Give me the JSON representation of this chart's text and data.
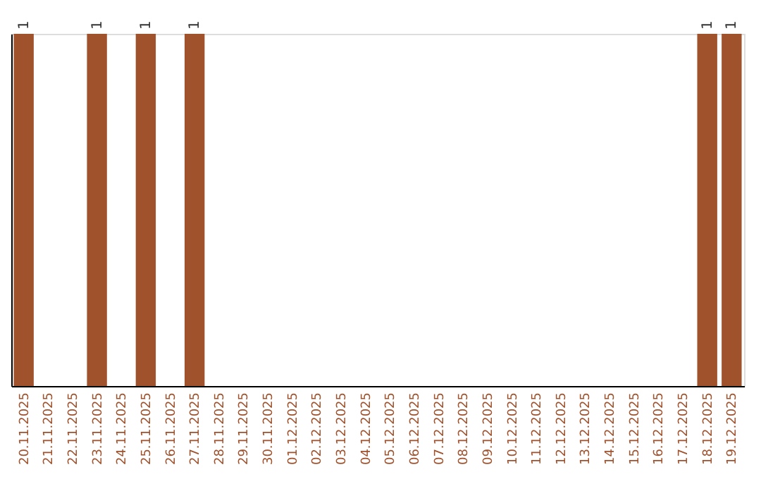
{
  "chart_data": {
    "type": "bar",
    "categories": [
      "20.11.2025",
      "21.11.2025",
      "22.11.2025",
      "23.11.2025",
      "24.11.2025",
      "25.11.2025",
      "26.11.2025",
      "27.11.2025",
      "28.11.2025",
      "29.11.2025",
      "30.11.2025",
      "01.12.2025",
      "02.12.2025",
      "03.12.2025",
      "04.12.2025",
      "05.12.2025",
      "06.12.2025",
      "07.12.2025",
      "08.12.2025",
      "09.12.2025",
      "10.12.2025",
      "11.12.2025",
      "12.12.2025",
      "13.12.2025",
      "14.12.2025",
      "15.12.2025",
      "16.12.2025",
      "17.12.2025",
      "18.12.2025",
      "19.12.2025"
    ],
    "values": [
      1,
      0,
      0,
      1,
      0,
      1,
      0,
      1,
      0,
      0,
      0,
      0,
      0,
      0,
      0,
      0,
      0,
      0,
      0,
      0,
      0,
      0,
      0,
      0,
      0,
      0,
      0,
      0,
      1,
      1
    ],
    "value_labels": [
      "1",
      null,
      null,
      "1",
      null,
      "1",
      null,
      "1",
      null,
      null,
      null,
      null,
      null,
      null,
      null,
      null,
      null,
      null,
      null,
      null,
      null,
      null,
      null,
      null,
      null,
      null,
      null,
      null,
      "1",
      "1"
    ],
    "color": "#a0522d",
    "grid": false
  }
}
